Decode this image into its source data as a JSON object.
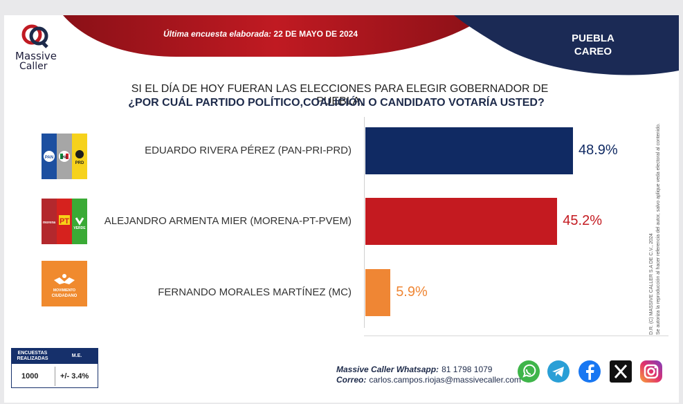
{
  "brand": {
    "name_line1": "Massive",
    "name_line2": "Caller"
  },
  "header": {
    "survey_label": "Última encuesta elaborada:",
    "survey_date": "22 DE MAYO DE 2024",
    "region_line1": "PUEBLA",
    "region_line2": "CAREO"
  },
  "question": {
    "line1": "SI EL DÍA DE HOY FUERAN LAS ELECCIONES PARA ELEGIR GOBERNADOR DE PUEBLA,",
    "line2": "¿POR CUÁL PARTIDO POLÍTICO,COALICIÓN  O CANDIDATO  VOTARÍA USTED?"
  },
  "chart_data": {
    "type": "bar",
    "orientation": "horizontal",
    "categories": [
      "EDUARDO RIVERA PÉREZ (PAN-PRI-PRD)",
      "ALEJANDRO ARMENTA MIER (MORENA-PT-PVEM)",
      "FERNANDO MORALES MARTÍNEZ (MC)"
    ],
    "values": [
      48.9,
      45.2,
      5.9
    ],
    "value_labels": [
      "48.9%",
      "45.2%",
      "5.9%"
    ],
    "colors": [
      "#102a63",
      "#c41a20",
      "#ef8634"
    ],
    "xlim": [
      0,
      100
    ],
    "grid": false
  },
  "party_logos": [
    {
      "icon": "pan-pri-prd-logo",
      "texts": [
        "PAN",
        "PRI",
        "PRD"
      ]
    },
    {
      "icon": "morena-pt-pvem-logo",
      "texts": [
        "morena",
        "PT",
        "VERDE"
      ]
    },
    {
      "icon": "movimiento-ciudadano-logo",
      "texts": [
        "MOVIMIENTO",
        "CIUDADANO"
      ]
    }
  ],
  "legal_note": {
    "line1": "D.R. (C) MASSIVE CALLER S.A DE C.V., 2024",
    "line2": "Se autoriza la reproducción al hacer referencia del autor, salvo aplique veda electoral al contenido."
  },
  "stats": {
    "col1_header": "ENCUESTAS REALIZADAS",
    "col2_header": "M.E.",
    "col1_value": "1000",
    "col2_value": "+/- 3.4%"
  },
  "contact": {
    "whatsapp_label": "Massive Caller Whatsapp:",
    "whatsapp_value": "81 1798  1079",
    "email_label": "Correo:",
    "email_value": "carlos.campos.riojas@massivecaller.com"
  },
  "social_icons": [
    "whatsapp-icon",
    "telegram-icon",
    "facebook-icon",
    "x-icon",
    "instagram-icon"
  ]
}
